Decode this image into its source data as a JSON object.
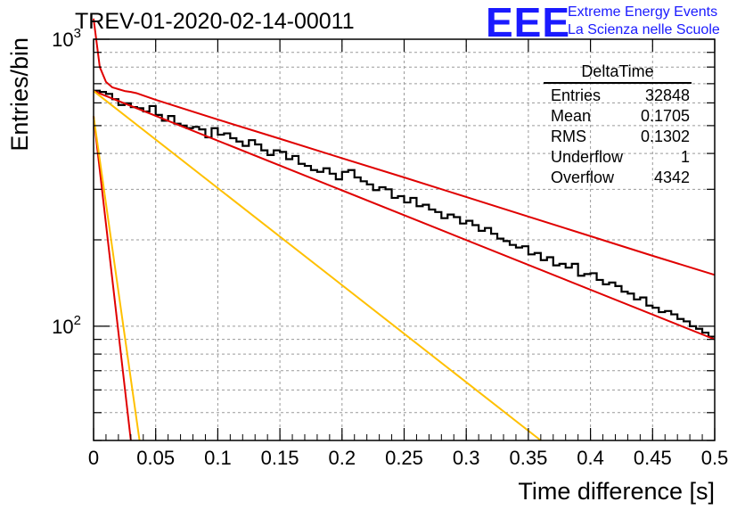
{
  "header": {
    "title": "TREV-01-2020-02-14-00011"
  },
  "logo": {
    "mark": "EEE",
    "line1": "Extreme Energy Events",
    "line2": "La Scienza nelle Scuole",
    "color": "#1a1aff"
  },
  "stats": {
    "title": "DeltaTime",
    "rows": [
      {
        "label": "Entries",
        "value": "32848"
      },
      {
        "label": "Mean",
        "value": "0.1705"
      },
      {
        "label": "RMS",
        "value": "0.1302"
      },
      {
        "label": "Underflow",
        "value": "1"
      },
      {
        "label": "Overflow",
        "value": "4342"
      }
    ]
  },
  "chart_data": {
    "type": "line",
    "title": "TREV-01-2020-02-14-00011",
    "xlabel": "Time difference [s]",
    "ylabel": "Entries/bin",
    "xlim": [
      0,
      0.5
    ],
    "ylim": [
      40,
      1000
    ],
    "yscale": "log",
    "grid": true,
    "x_ticks": [
      "0",
      "0.05",
      "0.1",
      "0.15",
      "0.2",
      "0.25",
      "0.3",
      "0.35",
      "0.4",
      "0.45",
      "0.5"
    ],
    "y_ticks": [
      "10^2",
      "10^3"
    ],
    "series": [
      {
        "kind": "histogram",
        "color": "#000000",
        "bin_width": 0.005,
        "values": [
          662,
          655,
          645,
          618,
          590,
          598,
          580,
          575,
          560,
          585,
          545,
          520,
          540,
          508,
          500,
          490,
          495,
          485,
          455,
          490,
          465,
          470,
          452,
          440,
          425,
          445,
          430,
          410,
          395,
          410,
          405,
          382,
          392,
          368,
          362,
          350,
          345,
          355,
          340,
          325,
          345,
          350,
          330,
          320,
          312,
          298,
          305,
          300,
          280,
          284,
          270,
          280,
          262,
          265,
          255,
          250,
          238,
          245,
          240,
          228,
          233,
          225,
          215,
          220,
          210,
          202,
          198,
          192,
          188,
          190,
          178,
          180,
          170,
          174,
          163,
          165,
          160,
          165,
          150,
          152,
          153,
          145,
          140,
          142,
          138,
          132,
          130,
          124,
          126,
          118,
          116,
          112,
          113,
          110,
          106,
          104,
          100,
          98,
          95,
          92
        ]
      },
      {
        "kind": "fit_total",
        "color": "#e00000",
        "x": [
          0,
          0.005,
          0.01,
          0.015,
          0.02,
          0.025,
          0.03,
          0.035,
          0.05,
          0.1,
          0.15,
          0.2,
          0.25,
          0.3,
          0.35,
          0.4,
          0.45,
          0.5
        ],
        "values": [
          1180,
          800,
          710,
          680,
          670,
          660,
          655,
          648,
          615,
          525,
          450,
          385,
          330,
          282,
          241,
          206,
          176,
          151
        ]
      },
      {
        "kind": "fit_slow",
        "color": "#e00000",
        "x": [
          0,
          0.5
        ],
        "values": [
          660,
          90
        ]
      },
      {
        "kind": "fit_fast",
        "color": "#e00000",
        "x": [
          0,
          0.03
        ],
        "values": [
          540,
          40
        ]
      },
      {
        "kind": "component_fast",
        "color": "#ffc000",
        "x": [
          0,
          0.037
        ],
        "values": [
          540,
          40
        ]
      },
      {
        "kind": "component_slow",
        "color": "#ffc000",
        "x": [
          0,
          0.36
        ],
        "values": [
          660,
          40
        ]
      }
    ]
  }
}
